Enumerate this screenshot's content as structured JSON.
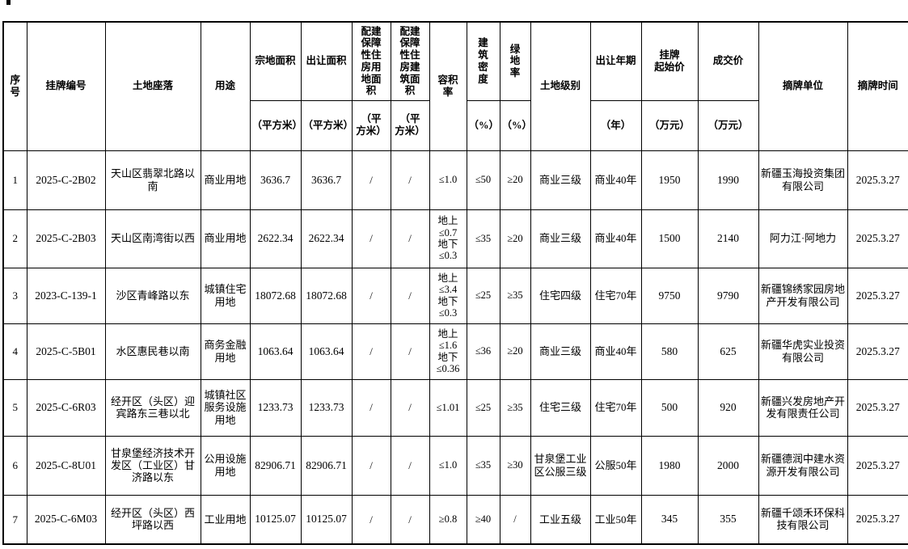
{
  "table": {
    "column_keys": [
      "serial",
      "listing-number",
      "land-location",
      "usage",
      "parcel-area",
      "transfer-area",
      "affordable-housing-land-area",
      "affordable-housing-floor-area",
      "floor-area-ratio",
      "building-density",
      "green-rate",
      "land-level",
      "tenure",
      "starting-price",
      "transaction-price",
      "winning-bidder",
      "delisting-date"
    ],
    "header": {
      "serial": "序\n号",
      "listing_number": "挂牌编号",
      "land_location": "土地座落",
      "usage": "用途",
      "parcel_area": "宗地面积",
      "transfer_area": "出让面积",
      "affordable_housing_land_area": "配建保障性住房用地面积",
      "affordable_housing_floor_area": "配建保障性住房建筑面积",
      "floor_area_ratio": "容积\n率",
      "building_density": "建\n筑\n密\n度",
      "green_rate": "绿\n地\n率",
      "land_level": "土地级别",
      "tenure": "出让年期",
      "starting_price": "挂牌\n起始价",
      "transaction_price": "成交价",
      "winning_bidder": "摘牌单位",
      "delisting_date": "摘牌时间"
    },
    "units": {
      "parcel_area": "（平方米）",
      "transfer_area": "（平方米）",
      "affordable_housing_land_area": "（平\n方米）",
      "affordable_housing_floor_area": "（平\n方米）",
      "building_density": "（%）",
      "green_rate": "（%）",
      "tenure": "（年）",
      "starting_price": "（万元）",
      "transaction_price": "（万元）"
    },
    "rows": [
      [
        "1",
        "2025-C-2B02",
        "天山区翡翠北路以南",
        "商业用地",
        "3636.7",
        "3636.7",
        "/",
        "/",
        "≤1.0",
        "≤50",
        "≥20",
        "商业三级",
        "商业40年",
        "1950",
        "1990",
        "新疆玉海投资集团有限公司",
        "2025.3.27"
      ],
      [
        "2",
        "2025-C-2B03",
        "天山区南湾街以西",
        "商业用地",
        "2622.34",
        "2622.34",
        "/",
        "/",
        "地上\n≤0.7\n地下\n≤0.3",
        "≤35",
        "≥20",
        "商业三级",
        "商业40年",
        "1500",
        "2140",
        "阿力江·阿地力",
        "2025.3.27"
      ],
      [
        "3",
        "2023-C-139-1",
        "沙区青峰路以东",
        "城镇住宅用地",
        "18072.68",
        "18072.68",
        "/",
        "/",
        "地上\n≤3.4\n地下\n≤0.3",
        "≤25",
        "≥35",
        "住宅四级",
        "住宅70年",
        "9750",
        "9790",
        "新疆锦绣家园房地产开发有限公司",
        "2025.3.27"
      ],
      [
        "4",
        "2025-C-5B01",
        "水区惠民巷以南",
        "商务金融用地",
        "1063.64",
        "1063.64",
        "/",
        "/",
        "地上\n≤1.6\n地下\n≤0.36",
        "≤36",
        "≥20",
        "商业三级",
        "商业40年",
        "580",
        "625",
        "新疆华虎实业投资有限公司",
        "2025.3.27"
      ],
      [
        "5",
        "2025-C-6R03",
        "经开区（头区）迎宾路东三巷以北",
        "城镇社区服务设施用地",
        "1233.73",
        "1233.73",
        "/",
        "/",
        "≤1.01",
        "≤25",
        "≥35",
        "住宅三级",
        "住宅70年",
        "500",
        "920",
        "新疆兴发房地产开发有限责任公司",
        "2025.3.27"
      ],
      [
        "6",
        "2025-C-8U01",
        "甘泉堡经济技术开发区（工业区）甘济路以东",
        "公用设施用地",
        "82906.71",
        "82906.71",
        "/",
        "/",
        "≤1.0",
        "≤35",
        "≥30",
        "甘泉堡工业区公服三级",
        "公服50年",
        "1980",
        "2000",
        "新疆德润中建水资源开发有限公司",
        "2025.3.27"
      ],
      [
        "7",
        "2025-C-6M03",
        "经开区（头区）西坪路以西",
        "工业用地",
        "10125.07",
        "10125.07",
        "/",
        "/",
        "≥0.8",
        "≥40",
        "/",
        "工业五级",
        "工业50年",
        "345",
        "355",
        "新疆千颂禾环保科技有限公司",
        "2025.3.27"
      ]
    ]
  },
  "colors": {
    "border": "#000000",
    "text": "#000000",
    "background": "#ffffff"
  }
}
